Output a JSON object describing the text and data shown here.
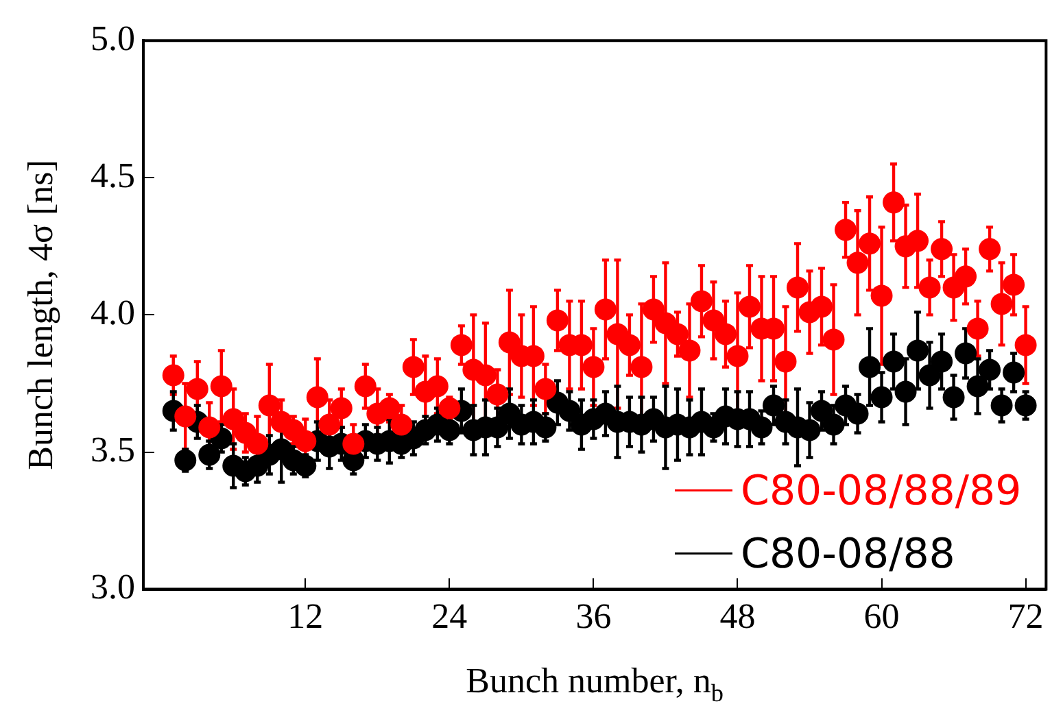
{
  "chart_data": {
    "type": "scatter",
    "xlabel": "Bunch number, n$_{b}$",
    "ylabel": "Bunch length, 4σ [ns]",
    "x": [
      1,
      2,
      3,
      4,
      5,
      6,
      7,
      8,
      9,
      10,
      11,
      12,
      13,
      14,
      15,
      16,
      17,
      18,
      19,
      20,
      21,
      22,
      23,
      24,
      25,
      26,
      27,
      28,
      29,
      30,
      31,
      32,
      33,
      34,
      35,
      36,
      37,
      38,
      39,
      40,
      41,
      42,
      43,
      44,
      45,
      46,
      47,
      48,
      49,
      50,
      51,
      52,
      53,
      54,
      55,
      56,
      57,
      58,
      59,
      60,
      61,
      62,
      63,
      64,
      65,
      66,
      67,
      68,
      69,
      70,
      71,
      72
    ],
    "xlim": [
      -1.5,
      73.7
    ],
    "xticks": [
      12,
      24,
      36,
      48,
      60,
      72
    ],
    "ylim": [
      3,
      5
    ],
    "yticks": [
      {
        "value": 3,
        "label": "3.0"
      },
      {
        "value": 3.5,
        "label": "3.5"
      },
      {
        "value": 4,
        "label": "4.0"
      },
      {
        "value": 4.5,
        "label": "4.5"
      },
      {
        "value": 5,
        "label": "5.0"
      }
    ],
    "grid": false,
    "legend": "bottom right",
    "marker": "circle",
    "series": [
      {
        "name": "C80-08/88/89",
        "color": "#ff0000",
        "values": [
          3.78,
          3.63,
          3.73,
          3.59,
          3.74,
          3.62,
          3.57,
          3.53,
          3.67,
          3.61,
          3.58,
          3.54,
          3.7,
          3.6,
          3.66,
          3.53,
          3.74,
          3.64,
          3.66,
          3.6,
          3.81,
          3.72,
          3.74,
          3.66,
          3.89,
          3.8,
          3.78,
          3.71,
          3.9,
          3.85,
          3.85,
          3.73,
          3.98,
          3.89,
          3.89,
          3.81,
          4.02,
          3.93,
          3.89,
          3.81,
          4.02,
          3.97,
          3.93,
          3.87,
          4.05,
          3.98,
          3.93,
          3.85,
          4.03,
          3.95,
          3.95,
          3.83,
          4.1,
          4.01,
          4.03,
          3.91,
          4.31,
          4.19,
          4.26,
          4.07,
          4.41,
          4.25,
          4.27,
          4.1,
          4.24,
          4.1,
          4.14,
          3.95,
          4.24,
          4.04,
          4.11,
          3.89
        ],
        "errors": [
          0.07,
          0.12,
          0.1,
          0.09,
          0.13,
          0.11,
          0.07,
          0.1,
          0.15,
          0.08,
          0.05,
          0.08,
          0.14,
          0.09,
          0.07,
          0.07,
          0.08,
          0.09,
          0.05,
          0.07,
          0.1,
          0.13,
          0.1,
          0.04,
          0.07,
          0.2,
          0.19,
          0.09,
          0.19,
          0.15,
          0.18,
          0.09,
          0.11,
          0.16,
          0.16,
          0.14,
          0.18,
          0.27,
          0.11,
          0.23,
          0.12,
          0.22,
          0.08,
          0.17,
          0.13,
          0.14,
          0.12,
          0.23,
          0.15,
          0.19,
          0.19,
          0.2,
          0.16,
          0.15,
          0.14,
          0.2,
          0.1,
          0.19,
          0.17,
          0.25,
          0.14,
          0.15,
          0.17,
          0.1,
          0.1,
          0.12,
          0.1,
          0.1,
          0.08,
          0.15,
          0.11,
          0.14
        ]
      },
      {
        "name": "C80-08/88",
        "color": "#000000",
        "values": [
          3.65,
          3.47,
          3.61,
          3.49,
          3.55,
          3.45,
          3.43,
          3.45,
          3.49,
          3.51,
          3.47,
          3.45,
          3.54,
          3.52,
          3.53,
          3.47,
          3.54,
          3.53,
          3.54,
          3.53,
          3.55,
          3.58,
          3.6,
          3.58,
          3.65,
          3.58,
          3.59,
          3.59,
          3.64,
          3.6,
          3.61,
          3.59,
          3.68,
          3.65,
          3.6,
          3.62,
          3.64,
          3.61,
          3.61,
          3.6,
          3.62,
          3.59,
          3.6,
          3.59,
          3.61,
          3.59,
          3.63,
          3.62,
          3.62,
          3.59,
          3.67,
          3.61,
          3.59,
          3.58,
          3.65,
          3.6,
          3.67,
          3.64,
          3.81,
          3.7,
          3.83,
          3.72,
          3.87,
          3.78,
          3.83,
          3.7,
          3.86,
          3.74,
          3.8,
          3.67,
          3.79,
          3.67
        ],
        "errors": [
          0.07,
          0.04,
          0.06,
          0.05,
          0.05,
          0.08,
          0.05,
          0.06,
          0.07,
          0.12,
          0.05,
          0.04,
          0.07,
          0.08,
          0.06,
          0.05,
          0.06,
          0.06,
          0.08,
          0.05,
          0.06,
          0.05,
          0.06,
          0.05,
          0.08,
          0.09,
          0.1,
          0.07,
          0.09,
          0.07,
          0.08,
          0.05,
          0.08,
          0.07,
          0.09,
          0.07,
          0.08,
          0.13,
          0.09,
          0.1,
          0.08,
          0.15,
          0.13,
          0.1,
          0.12,
          0.05,
          0.1,
          0.1,
          0.1,
          0.06,
          0.07,
          0.08,
          0.14,
          0.1,
          0.07,
          0.07,
          0.07,
          0.07,
          0.14,
          0.09,
          0.1,
          0.12,
          0.14,
          0.12,
          0.1,
          0.08,
          0.09,
          0.1,
          0.07,
          0.06,
          0.07,
          0.05
        ]
      }
    ]
  }
}
